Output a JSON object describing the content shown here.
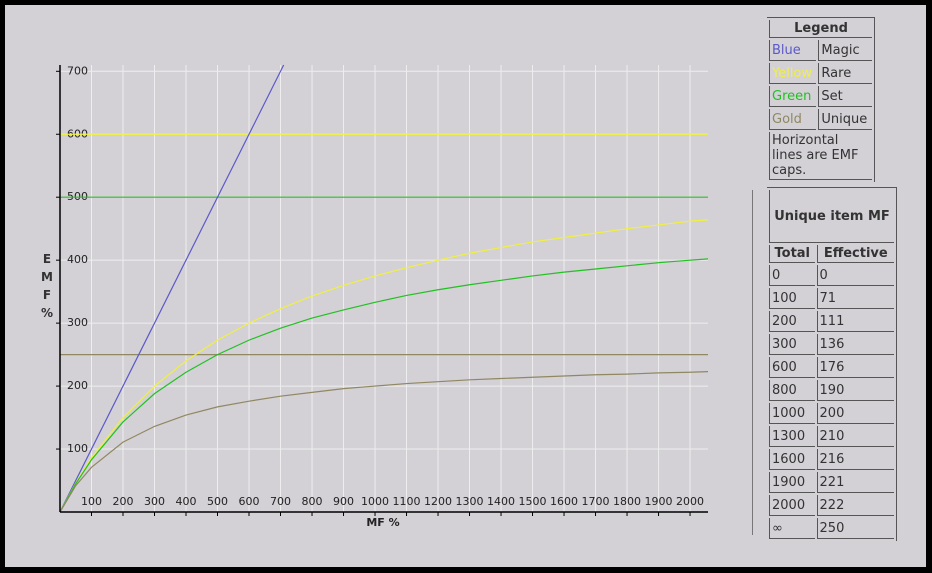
{
  "chart_data": {
    "type": "line",
    "xlabel": "MF %",
    "ylabel": "EMF %",
    "xlim": [
      0,
      2057
    ],
    "ylim": [
      0,
      710
    ],
    "xticks": [
      100,
      200,
      300,
      400,
      500,
      600,
      700,
      800,
      900,
      1000,
      1100,
      1200,
      1300,
      1400,
      1500,
      1600,
      1700,
      1800,
      1900,
      2000
    ],
    "yticks": [
      100,
      200,
      300,
      400,
      500,
      600,
      700
    ],
    "grid": true,
    "series": [
      {
        "color": "#5a5ac8",
        "x": [
          0,
          710
        ],
        "values": [
          0,
          710
        ]
      },
      {
        "color": "#f0f040",
        "x": [
          0,
          50,
          100,
          200,
          300,
          400,
          500,
          600,
          700,
          800,
          900,
          1000,
          1100,
          1200,
          1300,
          1400,
          1500,
          1600,
          1700,
          1800,
          1900,
          2000,
          2057
        ],
        "values": [
          0,
          46,
          86,
          150,
          200,
          240,
          273,
          300,
          323,
          343,
          360,
          375,
          388,
          400,
          411,
          420,
          429,
          436,
          443,
          450,
          456,
          462,
          464
        ]
      },
      {
        "color": "#22c022",
        "x": [
          0,
          50,
          100,
          200,
          300,
          400,
          500,
          600,
          700,
          800,
          900,
          1000,
          1100,
          1200,
          1300,
          1400,
          1500,
          1600,
          1700,
          1800,
          1900,
          2000,
          2057
        ],
        "values": [
          0,
          45,
          83,
          143,
          188,
          222,
          250,
          273,
          292,
          308,
          321,
          333,
          344,
          353,
          361,
          368,
          375,
          381,
          386,
          391,
          396,
          400,
          402
        ]
      },
      {
        "color": "#908862",
        "x": [
          0,
          50,
          100,
          200,
          300,
          400,
          500,
          600,
          700,
          800,
          900,
          1000,
          1100,
          1200,
          1300,
          1400,
          1500,
          1600,
          1700,
          1800,
          1900,
          2000,
          2057
        ],
        "values": [
          0,
          42,
          71,
          111,
          136,
          154,
          167,
          176,
          184,
          190,
          196,
          200,
          204,
          207,
          210,
          212,
          214,
          216,
          218,
          219,
          221,
          222,
          223
        ]
      }
    ],
    "caps": [
      {
        "value": 600,
        "color": "#f0f040"
      },
      {
        "value": 500,
        "color": "#22c022"
      },
      {
        "value": 250,
        "color": "#908862"
      }
    ]
  },
  "legend": {
    "title": "Legend",
    "rows": [
      [
        "Blue",
        "Magic"
      ],
      [
        "Yellow",
        "Rare"
      ],
      [
        "Green",
        "Set"
      ],
      [
        "Gold",
        "Unique"
      ]
    ],
    "colors": [
      "#5a5ac8",
      "#f0f040",
      "#22c022",
      "#908862"
    ],
    "note": "Horizontal lines are EMF caps."
  },
  "table": {
    "title": "Unique item MF",
    "header": [
      "Total",
      "Effective"
    ],
    "rows": [
      [
        0,
        0
      ],
      [
        100,
        71
      ],
      [
        200,
        111
      ],
      [
        300,
        136
      ],
      [
        600,
        176
      ],
      [
        800,
        190
      ],
      [
        1000,
        200
      ],
      [
        1300,
        210
      ],
      [
        1600,
        216
      ],
      [
        1900,
        221
      ],
      [
        2000,
        222
      ],
      [
        "∞",
        250
      ]
    ]
  }
}
